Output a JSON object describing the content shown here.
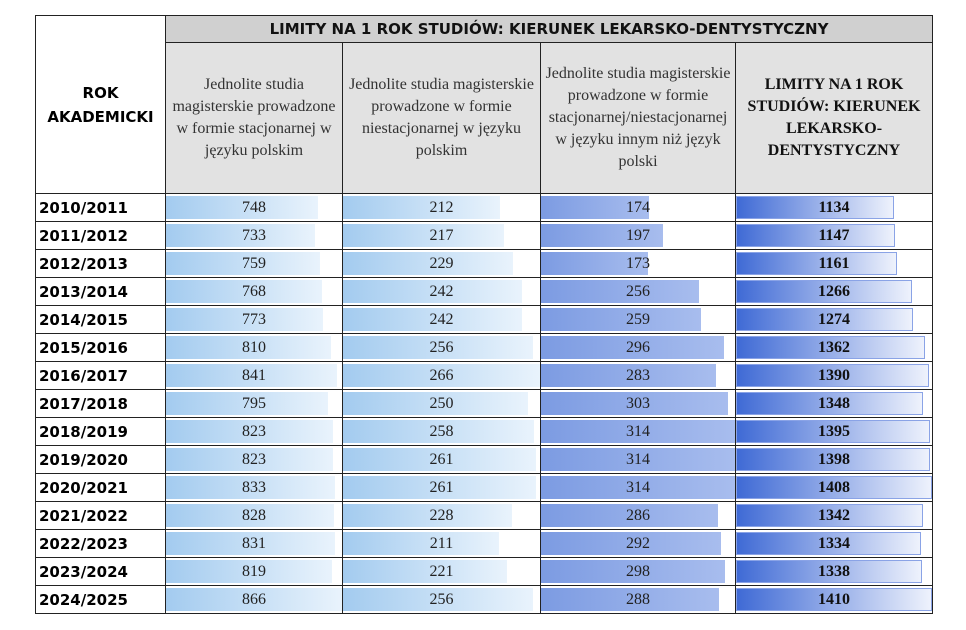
{
  "table": {
    "title": "LIMITY NA 1 ROK STUDIÓW: KIERUNEK LEKARSKO-DENTYSTYCZNY",
    "header": [
      "ROK AKADEMICKI",
      "Jednolite studia magisterskie prowadzone w formie stacjonarnej w języku polskim",
      "Jednolite studia magisterskie prowadzone w formie niestacjonarnej w języku polskim",
      "Jednolite studia magisterskie prowadzone w formie stacjonarnej/niestacjonarnej w języku innym niż język polski",
      "LIMITY NA 1 ROK STUDIÓW: KIERUNEK LEKARSKO-DENTYSTYCZNY"
    ],
    "rows": [
      [
        "2010/2011",
        748,
        212,
        174,
        1134
      ],
      [
        "2011/2012",
        733,
        217,
        197,
        1147
      ],
      [
        "2012/2013",
        759,
        229,
        173,
        1161
      ],
      [
        "2013/2014",
        768,
        242,
        256,
        1266
      ],
      [
        "2014/2015",
        773,
        242,
        259,
        1274
      ],
      [
        "2015/2016",
        810,
        256,
        296,
        1362
      ],
      [
        "2016/2017",
        841,
        266,
        283,
        1390
      ],
      [
        "2017/2018",
        795,
        250,
        303,
        1348
      ],
      [
        "2018/2019",
        823,
        258,
        314,
        1395
      ],
      [
        "2019/2020",
        823,
        261,
        314,
        1398
      ],
      [
        "2020/2021",
        833,
        261,
        314,
        1408
      ],
      [
        "2021/2022",
        828,
        228,
        286,
        1342
      ],
      [
        "2022/2023",
        831,
        211,
        292,
        1334
      ],
      [
        "2023/2024",
        819,
        221,
        298,
        1338
      ],
      [
        "2024/2025",
        866,
        256,
        288,
        1410
      ]
    ]
  }
}
